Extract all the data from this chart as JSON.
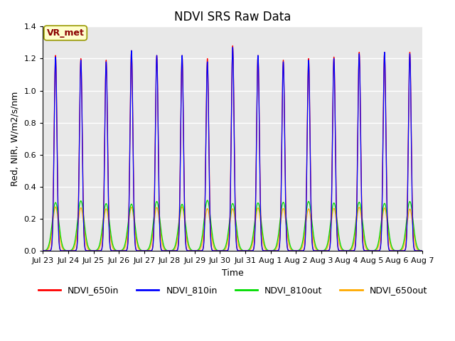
{
  "title": "NDVI SRS Raw Data",
  "xlabel": "Time",
  "ylabel": "Red, NIR, W/m2/s/nm",
  "ylim": [
    0.0,
    1.4
  ],
  "background_color": "#e8e8e8",
  "grid_color": "white",
  "annotation_text": "VR_met",
  "annotation_box_facecolor": "#ffffcc",
  "annotation_box_edgecolor": "#999900",
  "series": {
    "NDVI_650in": {
      "color": "#ff0000",
      "label": "NDVI_650in"
    },
    "NDVI_810in": {
      "color": "#0000ff",
      "label": "NDVI_810in"
    },
    "NDVI_810out": {
      "color": "#00dd00",
      "label": "NDVI_810out"
    },
    "NDVI_650out": {
      "color": "#ffaa00",
      "label": "NDVI_650out"
    }
  },
  "tick_labels": [
    "Jul 23",
    "Jul 24",
    "Jul 25",
    "Jul 26",
    "Jul 27",
    "Jul 28",
    "Jul 29",
    "Jul 30",
    "Jul 31",
    "Aug 1",
    "Aug 2",
    "Aug 3",
    "Aug 4",
    "Aug 5",
    "Aug 6",
    "Aug 7"
  ],
  "num_cycles": 15,
  "title_fontsize": 12,
  "axis_label_fontsize": 9,
  "tick_fontsize": 8,
  "legend_fontsize": 9
}
